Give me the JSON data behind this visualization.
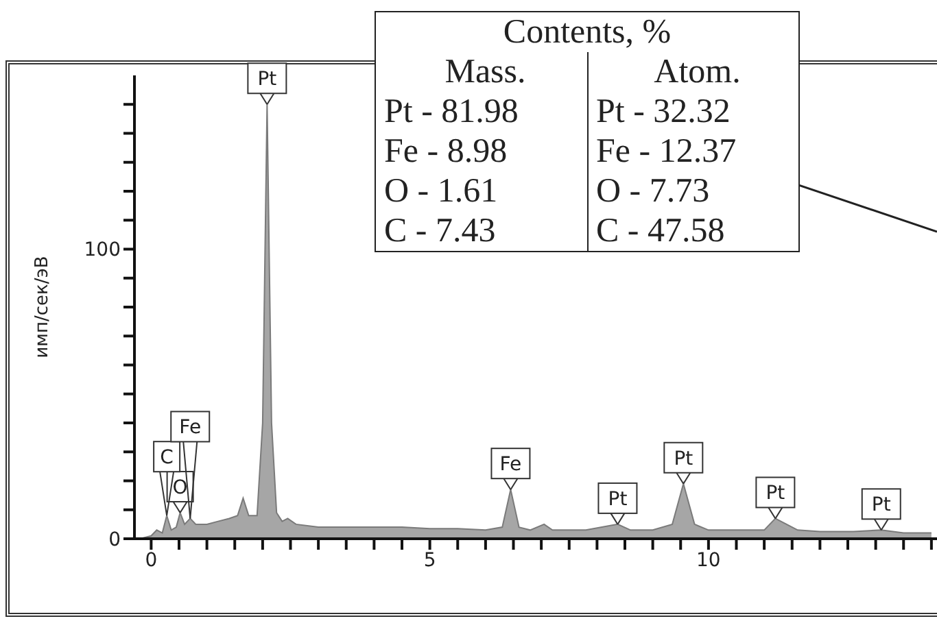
{
  "chart_data": {
    "type": "area",
    "ylabel": "имп/сек/эВ",
    "color": "#a6a6a6",
    "x": [
      -0.2,
      0.0,
      0.1,
      0.2,
      0.28,
      0.36,
      0.45,
      0.52,
      0.6,
      0.7,
      0.8,
      1.0,
      1.2,
      1.4,
      1.55,
      1.65,
      1.75,
      1.9,
      2.0,
      2.08,
      2.16,
      2.25,
      2.35,
      2.45,
      2.6,
      3.0,
      3.5,
      4.0,
      4.5,
      5.0,
      5.5,
      6.0,
      6.3,
      6.45,
      6.6,
      6.8,
      7.05,
      7.2,
      7.8,
      8.37,
      8.6,
      9.0,
      9.35,
      9.55,
      9.75,
      10.0,
      10.5,
      11.0,
      11.2,
      11.4,
      11.6,
      12.0,
      12.6,
      13.1,
      13.5,
      14.0
    ],
    "values": [
      0,
      1,
      3,
      2,
      8,
      3,
      4,
      9,
      5,
      7,
      5,
      5,
      6,
      7,
      8,
      14,
      8,
      8,
      40,
      150,
      40,
      9,
      6,
      7,
      5,
      4,
      4,
      4,
      4,
      3.5,
      3.5,
      3,
      4,
      17,
      4,
      3,
      5,
      3,
      3,
      5,
      3,
      3,
      5,
      19,
      5,
      3,
      3,
      3,
      7,
      5,
      3,
      2.5,
      2.5,
      3,
      2,
      2
    ],
    "xlim": [
      -0.3,
      14.1
    ],
    "xticks": [
      0,
      {
        "value": 0.5,
        "label": null
      },
      {
        "value": 1,
        "label": null
      },
      {
        "value": 1.5,
        "label": null
      },
      {
        "value": 2,
        "label": null
      },
      {
        "value": 2.5,
        "label": null
      },
      {
        "value": 3,
        "label": null
      },
      {
        "value": 3.5,
        "label": null
      },
      {
        "value": 4,
        "label": null
      },
      {
        "value": 4.5,
        "label": null
      },
      5,
      {
        "value": 5.5,
        "label": null
      },
      {
        "value": 6,
        "label": null
      },
      {
        "value": 6.5,
        "label": null
      },
      {
        "value": 7,
        "label": null
      },
      {
        "value": 7.5,
        "label": null
      },
      {
        "value": 8,
        "label": null
      },
      {
        "value": 8.5,
        "label": null
      },
      {
        "value": 9,
        "label": null
      },
      {
        "value": 9.5,
        "label": null
      },
      10,
      {
        "value": 10.5,
        "label": null
      },
      {
        "value": 11,
        "label": null
      },
      {
        "value": 11.5,
        "label": null
      },
      {
        "value": 12,
        "label": null
      },
      {
        "value": 12.5,
        "label": null
      },
      {
        "value": 13,
        "label": null
      },
      {
        "value": 13.5,
        "label": null
      },
      {
        "value": 14,
        "label": null
      }
    ],
    "ylim": [
      0,
      160
    ],
    "yticks": [
      0,
      {
        "value": 10,
        "label": null
      },
      {
        "value": 20,
        "label": null
      },
      {
        "value": 30,
        "label": null
      },
      {
        "value": 40,
        "label": null
      },
      {
        "value": 50,
        "label": null
      },
      {
        "value": 60,
        "label": null
      },
      {
        "value": 70,
        "label": null
      },
      {
        "value": 80,
        "label": null
      },
      {
        "value": 90,
        "label": null
      },
      100,
      {
        "value": 110,
        "label": null
      },
      {
        "value": 120,
        "label": null
      },
      {
        "value": 130,
        "label": null
      },
      {
        "value": 140,
        "label": null
      },
      {
        "value": 150,
        "label": null
      }
    ],
    "annotations": [
      {
        "text": "O",
        "x": 0.52,
        "y": 9
      },
      {
        "text": "C",
        "x": 0.28,
        "y": 8
      },
      {
        "text": "Fe",
        "x": 0.7,
        "y": 7
      },
      {
        "text": "Pt",
        "x": 2.08,
        "y": 150
      },
      {
        "text": "Fe",
        "x": 6.45,
        "y": 17
      },
      {
        "text": "Pt",
        "x": 8.37,
        "y": 5
      },
      {
        "text": "Pt",
        "x": 9.55,
        "y": 19
      },
      {
        "text": "Pt",
        "x": 11.2,
        "y": 7
      },
      {
        "text": "Pt",
        "x": 13.1,
        "y": 3
      },
      "Contents, %",
      "Mass.",
      "Pt - 81.98",
      "Fe - 8.98",
      "O - 1.61",
      "C - 7.43",
      "Atom.",
      "Pt - 32.32",
      "Fe - 12.37",
      "O - 7.73",
      "C - 47.58"
    ]
  }
}
